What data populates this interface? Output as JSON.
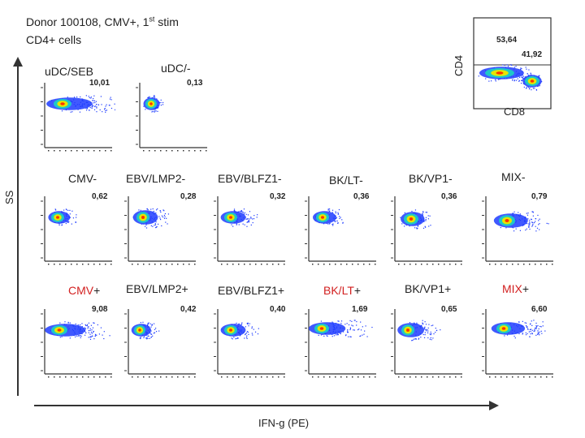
{
  "title": {
    "line1_main": "Donor 100108, CMV+, 1",
    "line1_sup": "st",
    "line1_end": " stim",
    "line2": "CD4+ cells"
  },
  "axes": {
    "y_ss": "SS",
    "x_ifng": "IFN-g (PE)",
    "cd4": "CD4",
    "cd8": "CD8"
  },
  "colors": {
    "low": "#1e3cff",
    "mid": "#1ec8c8",
    "high": "#e6e600",
    "peak": "#ff3300",
    "axis": "#333333"
  },
  "cd4_cd8_plot": {
    "q_upper": "53,64",
    "q_lower": "41,92"
  },
  "controls": [
    {
      "label": "uDC/SEB",
      "value": "10,01"
    },
    {
      "label": "uDC/-",
      "value": "0,13"
    }
  ],
  "row_minus": [
    {
      "label": "CMV-",
      "value": "0,62"
    },
    {
      "label": "EBV/LMP2-",
      "value": "0,28"
    },
    {
      "label": "EBV/BLFZ1-",
      "value": "0,32"
    },
    {
      "label": "BK/LT-",
      "value": "0,36"
    },
    {
      "label": "BK/VP1-",
      "value": "0,36"
    },
    {
      "label": "MIX-",
      "value": "0,79"
    }
  ],
  "row_plus": [
    {
      "label_a": "CMV",
      "label_b": "+",
      "value": "9,08",
      "red": true
    },
    {
      "label_a": "EBV/LMP2+",
      "label_b": "",
      "value": "0,42",
      "red": false
    },
    {
      "label_a": "EBV/BLFZ1+",
      "label_b": "",
      "value": "0,40",
      "red": false
    },
    {
      "label_a": "BK/LT",
      "label_b": "+",
      "value": "1,69",
      "red": true
    },
    {
      "label_a": "BK/VP1+",
      "label_b": "",
      "value": "0,65",
      "red": false
    },
    {
      "label_a": "MIX",
      "label_b": "+",
      "value": "6,60",
      "red": true
    }
  ]
}
